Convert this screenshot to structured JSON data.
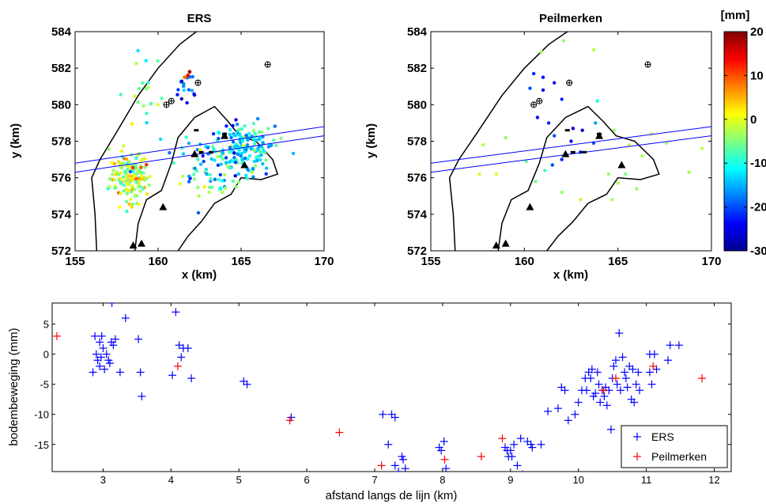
{
  "chart_data": [
    {
      "type": "scatter",
      "title": "ERS",
      "xlabel": "x (km)",
      "ylabel": "y (km)",
      "xlim": [
        155,
        170
      ],
      "ylim": [
        572,
        584
      ],
      "xticks": [
        "155",
        "160",
        "165",
        "170"
      ],
      "yticks": [
        "572",
        "574",
        "576",
        "578",
        "580",
        "582",
        "584"
      ],
      "coastline": [
        [
          156.3,
          572
        ],
        [
          156.2,
          574
        ],
        [
          156.0,
          576
        ],
        [
          156.5,
          577
        ],
        [
          157.5,
          578.5
        ],
        [
          158.8,
          580.5
        ],
        [
          160.0,
          582.0
        ],
        [
          161.3,
          583.3
        ],
        [
          162.3,
          584
        ]
      ],
      "island_outline": [
        [
          158.6,
          572
        ],
        [
          158.8,
          573.5
        ],
        [
          159.3,
          574.8
        ],
        [
          160.2,
          575.3
        ],
        [
          160.8,
          576.8
        ],
        [
          161.2,
          578.2
        ],
        [
          162.2,
          579.3
        ],
        [
          163.4,
          579.9
        ],
        [
          164.2,
          579.1
        ],
        [
          164.9,
          578.3
        ],
        [
          165.9,
          578.0
        ],
        [
          166.9,
          577.0
        ],
        [
          167.2,
          576.2
        ],
        [
          166.2,
          575.9
        ],
        [
          165.0,
          576.0
        ],
        [
          164.4,
          575.1
        ],
        [
          163.4,
          574.6
        ],
        [
          162.6,
          573.6
        ],
        [
          161.8,
          572.8
        ],
        [
          161.2,
          572
        ]
      ],
      "profile_lines": [
        [
          [
            155,
            576.8
          ],
          [
            170,
            578.8
          ]
        ],
        [
          [
            155,
            576.3
          ],
          [
            170,
            578.3
          ]
        ]
      ],
      "triangles": [
        [
          158.5,
          572.3
        ],
        [
          159.0,
          572.4
        ],
        [
          160.3,
          574.4
        ],
        [
          162.2,
          577.3
        ],
        [
          164.0,
          578.3
        ],
        [
          165.2,
          576.7
        ]
      ],
      "markers_circled_plus": [
        [
          160.5,
          580.0
        ],
        [
          160.8,
          580.2
        ],
        [
          162.4,
          581.2
        ],
        [
          166.6,
          582.2
        ]
      ],
      "colorscale_range": [
        -30,
        20
      ],
      "clusters": [
        {
          "cx": 158.3,
          "cy": 576.0,
          "sx": 0.6,
          "sy": 0.7,
          "n": 150,
          "v": -2
        },
        {
          "cx": 165.2,
          "cy": 577.6,
          "sx": 0.9,
          "sy": 0.7,
          "n": 160,
          "v": -12
        },
        {
          "cx": 163.0,
          "cy": 577.3,
          "sx": 1.0,
          "sy": 0.8,
          "n": 50,
          "v": -15
        },
        {
          "cx": 161.5,
          "cy": 581.0,
          "sx": 0.4,
          "sy": 0.4,
          "n": 16,
          "v": -20
        },
        {
          "cx": 159.0,
          "cy": 580.5,
          "sx": 0.6,
          "sy": 1.3,
          "n": 22,
          "v": -8
        },
        {
          "cx": 163.5,
          "cy": 575.5,
          "sx": 1.2,
          "sy": 0.5,
          "n": 22,
          "v": -6
        }
      ],
      "highlights": [
        {
          "x": 161.8,
          "y": 581.6,
          "v": 15
        },
        {
          "x": 161.9,
          "y": 581.8,
          "v": 18
        },
        {
          "x": 161.6,
          "y": 581.5,
          "v": 8
        }
      ]
    },
    {
      "type": "scatter",
      "title": "Peilmerken",
      "xlabel": "x (km)",
      "ylabel": "y (km)",
      "xlim": [
        155,
        170
      ],
      "ylim": [
        572,
        584
      ],
      "xticks": [
        "155",
        "160",
        "165",
        "170"
      ],
      "yticks": [
        "572",
        "574",
        "576",
        "578",
        "580",
        "582",
        "584"
      ],
      "colorscale_range": [
        -30,
        20
      ],
      "points": [
        [
          160.5,
          581.7,
          -22
        ],
        [
          161.0,
          581.5,
          -24
        ],
        [
          161.6,
          581.2,
          -23
        ],
        [
          161.0,
          580.8,
          -25
        ],
        [
          162.0,
          580.3,
          -22
        ],
        [
          160.3,
          580.9,
          -20
        ],
        [
          160.7,
          579.3,
          -24
        ],
        [
          161.3,
          579.0,
          -22
        ],
        [
          161.6,
          578.3,
          -20
        ],
        [
          162.6,
          578.7,
          -25
        ],
        [
          163.1,
          578.6,
          -26
        ],
        [
          162.5,
          578.0,
          -24
        ],
        [
          163.0,
          577.4,
          -23
        ],
        [
          163.7,
          577.9,
          -20
        ],
        [
          162.0,
          577.0,
          -22
        ],
        [
          161.5,
          576.7,
          -20
        ],
        [
          163.8,
          579.0,
          -16
        ],
        [
          164.8,
          578.6,
          -4
        ],
        [
          165.6,
          577.8,
          -2
        ],
        [
          166.3,
          577.2,
          -3
        ],
        [
          166.8,
          578.4,
          -2
        ],
        [
          167.6,
          577.9,
          -4
        ],
        [
          168.8,
          576.3,
          -3
        ],
        [
          169.5,
          577.6,
          -2
        ],
        [
          165.4,
          576.2,
          -5
        ],
        [
          165.0,
          575.7,
          -3
        ],
        [
          163.0,
          574.8,
          -2
        ],
        [
          162.0,
          575.2,
          -4
        ],
        [
          160.6,
          575.8,
          -6
        ],
        [
          161.1,
          576.4,
          -8
        ],
        [
          157.6,
          576.2,
          -1
        ],
        [
          158.5,
          576.2,
          0
        ],
        [
          157.8,
          577.8,
          -2
        ],
        [
          159.0,
          578.2,
          -4
        ],
        [
          160.3,
          574.4,
          -1
        ],
        [
          162.1,
          583.5,
          -4
        ],
        [
          163.7,
          583.0,
          -2
        ],
        [
          160.9,
          582.9,
          -3
        ],
        [
          160.1,
          576.9,
          -6
        ],
        [
          164.5,
          576.2,
          -4
        ],
        [
          164.7,
          574.8,
          -3
        ],
        [
          166.0,
          575.4,
          -4
        ],
        [
          163.9,
          580.2,
          -10
        ]
      ]
    },
    {
      "type": "scatter",
      "xlabel": "afstand langs de lijn (km)",
      "ylabel": "bodembeweging (mm)",
      "xlim": [
        2.25,
        12.25
      ],
      "ylim": [
        -19.5,
        8.5
      ],
      "xticks": [
        "3",
        "4",
        "5",
        "6",
        "7",
        "8",
        "9",
        "10",
        "11",
        "12"
      ],
      "yticks": [
        "-15",
        "-10",
        "-5",
        "0",
        "5"
      ],
      "series": [
        {
          "name": "ERS",
          "color": "#0000ff",
          "points": [
            [
              2.85,
              -3
            ],
            [
              2.88,
              3
            ],
            [
              2.9,
              0
            ],
            [
              2.92,
              -1
            ],
            [
              2.95,
              -2
            ],
            [
              2.95,
              2
            ],
            [
              2.97,
              -0.5
            ],
            [
              2.98,
              3
            ],
            [
              3.0,
              1
            ],
            [
              3.02,
              -2.5
            ],
            [
              3.05,
              0
            ],
            [
              3.08,
              -1
            ],
            [
              3.1,
              -1.5
            ],
            [
              3.12,
              2
            ],
            [
              3.13,
              8.5
            ],
            [
              3.15,
              1.5
            ],
            [
              3.18,
              2.5
            ],
            [
              3.25,
              -3
            ],
            [
              3.33,
              6
            ],
            [
              3.52,
              2.5
            ],
            [
              3.55,
              -3
            ],
            [
              3.57,
              -7
            ],
            [
              4.02,
              -3.5
            ],
            [
              4.07,
              7
            ],
            [
              4.12,
              1.5
            ],
            [
              4.15,
              -0.5
            ],
            [
              4.18,
              1
            ],
            [
              4.25,
              1
            ],
            [
              4.3,
              -4
            ],
            [
              5.07,
              -4.5
            ],
            [
              5.12,
              -5
            ],
            [
              5.77,
              -10.5
            ],
            [
              7.12,
              -10
            ],
            [
              7.2,
              -15
            ],
            [
              7.25,
              -10
            ],
            [
              7.3,
              -10.5
            ],
            [
              7.3,
              -18.5
            ],
            [
              7.35,
              -19.5
            ],
            [
              7.4,
              -17
            ],
            [
              7.42,
              -17.5
            ],
            [
              7.45,
              -19
            ],
            [
              7.95,
              -15.5
            ],
            [
              7.98,
              -16
            ],
            [
              8.02,
              -14.5
            ],
            [
              8.05,
              -19
            ],
            [
              8.92,
              -15.5
            ],
            [
              8.95,
              -16
            ],
            [
              8.97,
              -17
            ],
            [
              9.0,
              -16
            ],
            [
              9.02,
              -17
            ],
            [
              9.05,
              -15
            ],
            [
              9.1,
              -18.5
            ],
            [
              9.15,
              -14
            ],
            [
              9.18,
              -20
            ],
            [
              9.25,
              -14.5
            ],
            [
              9.3,
              -15
            ],
            [
              9.32,
              -15.5
            ],
            [
              9.45,
              -15
            ],
            [
              9.55,
              -9.5
            ],
            [
              9.7,
              -9
            ],
            [
              9.75,
              -5.5
            ],
            [
              9.8,
              -6
            ],
            [
              9.85,
              -11
            ],
            [
              9.95,
              -10
            ],
            [
              10.0,
              -8
            ],
            [
              10.05,
              -6
            ],
            [
              10.1,
              -4
            ],
            [
              10.12,
              -6
            ],
            [
              10.15,
              -3
            ],
            [
              10.18,
              -4
            ],
            [
              10.2,
              -2.5
            ],
            [
              10.22,
              -7
            ],
            [
              10.25,
              -6.5
            ],
            [
              10.28,
              -3
            ],
            [
              10.3,
              -5
            ],
            [
              10.32,
              -8
            ],
            [
              10.35,
              -6
            ],
            [
              10.38,
              -7
            ],
            [
              10.4,
              -5.5
            ],
            [
              10.42,
              -8.5
            ],
            [
              10.45,
              -6
            ],
            [
              10.48,
              -12.5
            ],
            [
              10.5,
              -4
            ],
            [
              10.52,
              -2
            ],
            [
              10.55,
              -1
            ],
            [
              10.57,
              -5
            ],
            [
              10.6,
              3.5
            ],
            [
              10.62,
              -6
            ],
            [
              10.65,
              -0.5
            ],
            [
              10.68,
              -3
            ],
            [
              10.7,
              -4
            ],
            [
              10.72,
              -5.5
            ],
            [
              10.75,
              -2
            ],
            [
              10.78,
              -7.5
            ],
            [
              10.8,
              -2.5
            ],
            [
              10.82,
              -8
            ],
            [
              10.85,
              -5
            ],
            [
              10.88,
              -3
            ],
            [
              10.9,
              -6
            ],
            [
              11.05,
              -3
            ],
            [
              11.08,
              -5
            ],
            [
              11.12,
              0
            ],
            [
              11.15,
              -2.5
            ],
            [
              11.32,
              -1
            ],
            [
              11.35,
              1.5
            ],
            [
              11.48,
              1.5
            ],
            [
              11.05,
              0
            ]
          ]
        },
        {
          "name": "Peilmerken",
          "color": "#ff0000",
          "points": [
            [
              2.32,
              3
            ],
            [
              4.1,
              -2
            ],
            [
              5.75,
              -11
            ],
            [
              6.48,
              -13
            ],
            [
              7.1,
              -18.5
            ],
            [
              8.03,
              -17.5
            ],
            [
              8.57,
              -17
            ],
            [
              8.88,
              -14
            ],
            [
              10.37,
              -6
            ],
            [
              10.55,
              -4
            ],
            [
              11.1,
              -2
            ],
            [
              11.82,
              -4
            ]
          ]
        }
      ],
      "legend": "bottom-right"
    }
  ],
  "colorbar": {
    "unit": "[mm]",
    "ticks": [
      "20",
      "10",
      "0",
      "-10",
      "-20",
      "-30"
    ]
  }
}
